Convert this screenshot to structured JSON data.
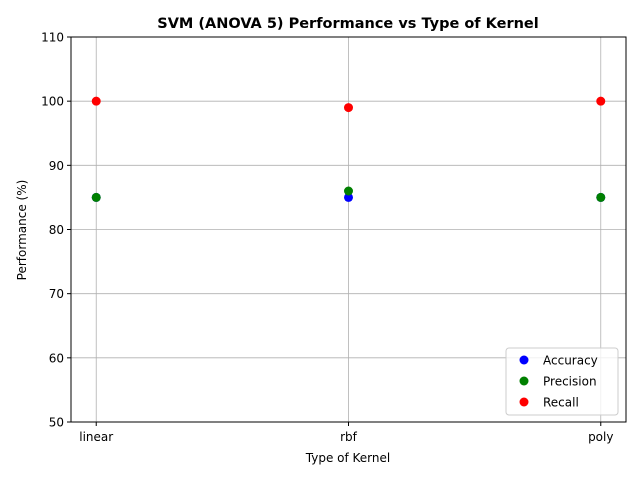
{
  "chart_data": {
    "type": "scatter",
    "title": "SVM (ANOVA 5) Performance vs Type of Kernel",
    "xlabel": "Type of Kernel",
    "ylabel": "Performance (%)",
    "categories": [
      "linear",
      "rbf",
      "poly"
    ],
    "ylim": [
      50,
      110
    ],
    "yticks": [
      50,
      60,
      70,
      80,
      90,
      100,
      110
    ],
    "grid": true,
    "legend_position": "lower-right",
    "series": [
      {
        "name": "Accuracy",
        "color": "#0000ff",
        "values": [
          85,
          85,
          85
        ]
      },
      {
        "name": "Precision",
        "color": "#008000",
        "values": [
          85,
          86,
          85
        ]
      },
      {
        "name": "Recall",
        "color": "#ff0000",
        "values": [
          100,
          99,
          100
        ]
      }
    ]
  }
}
